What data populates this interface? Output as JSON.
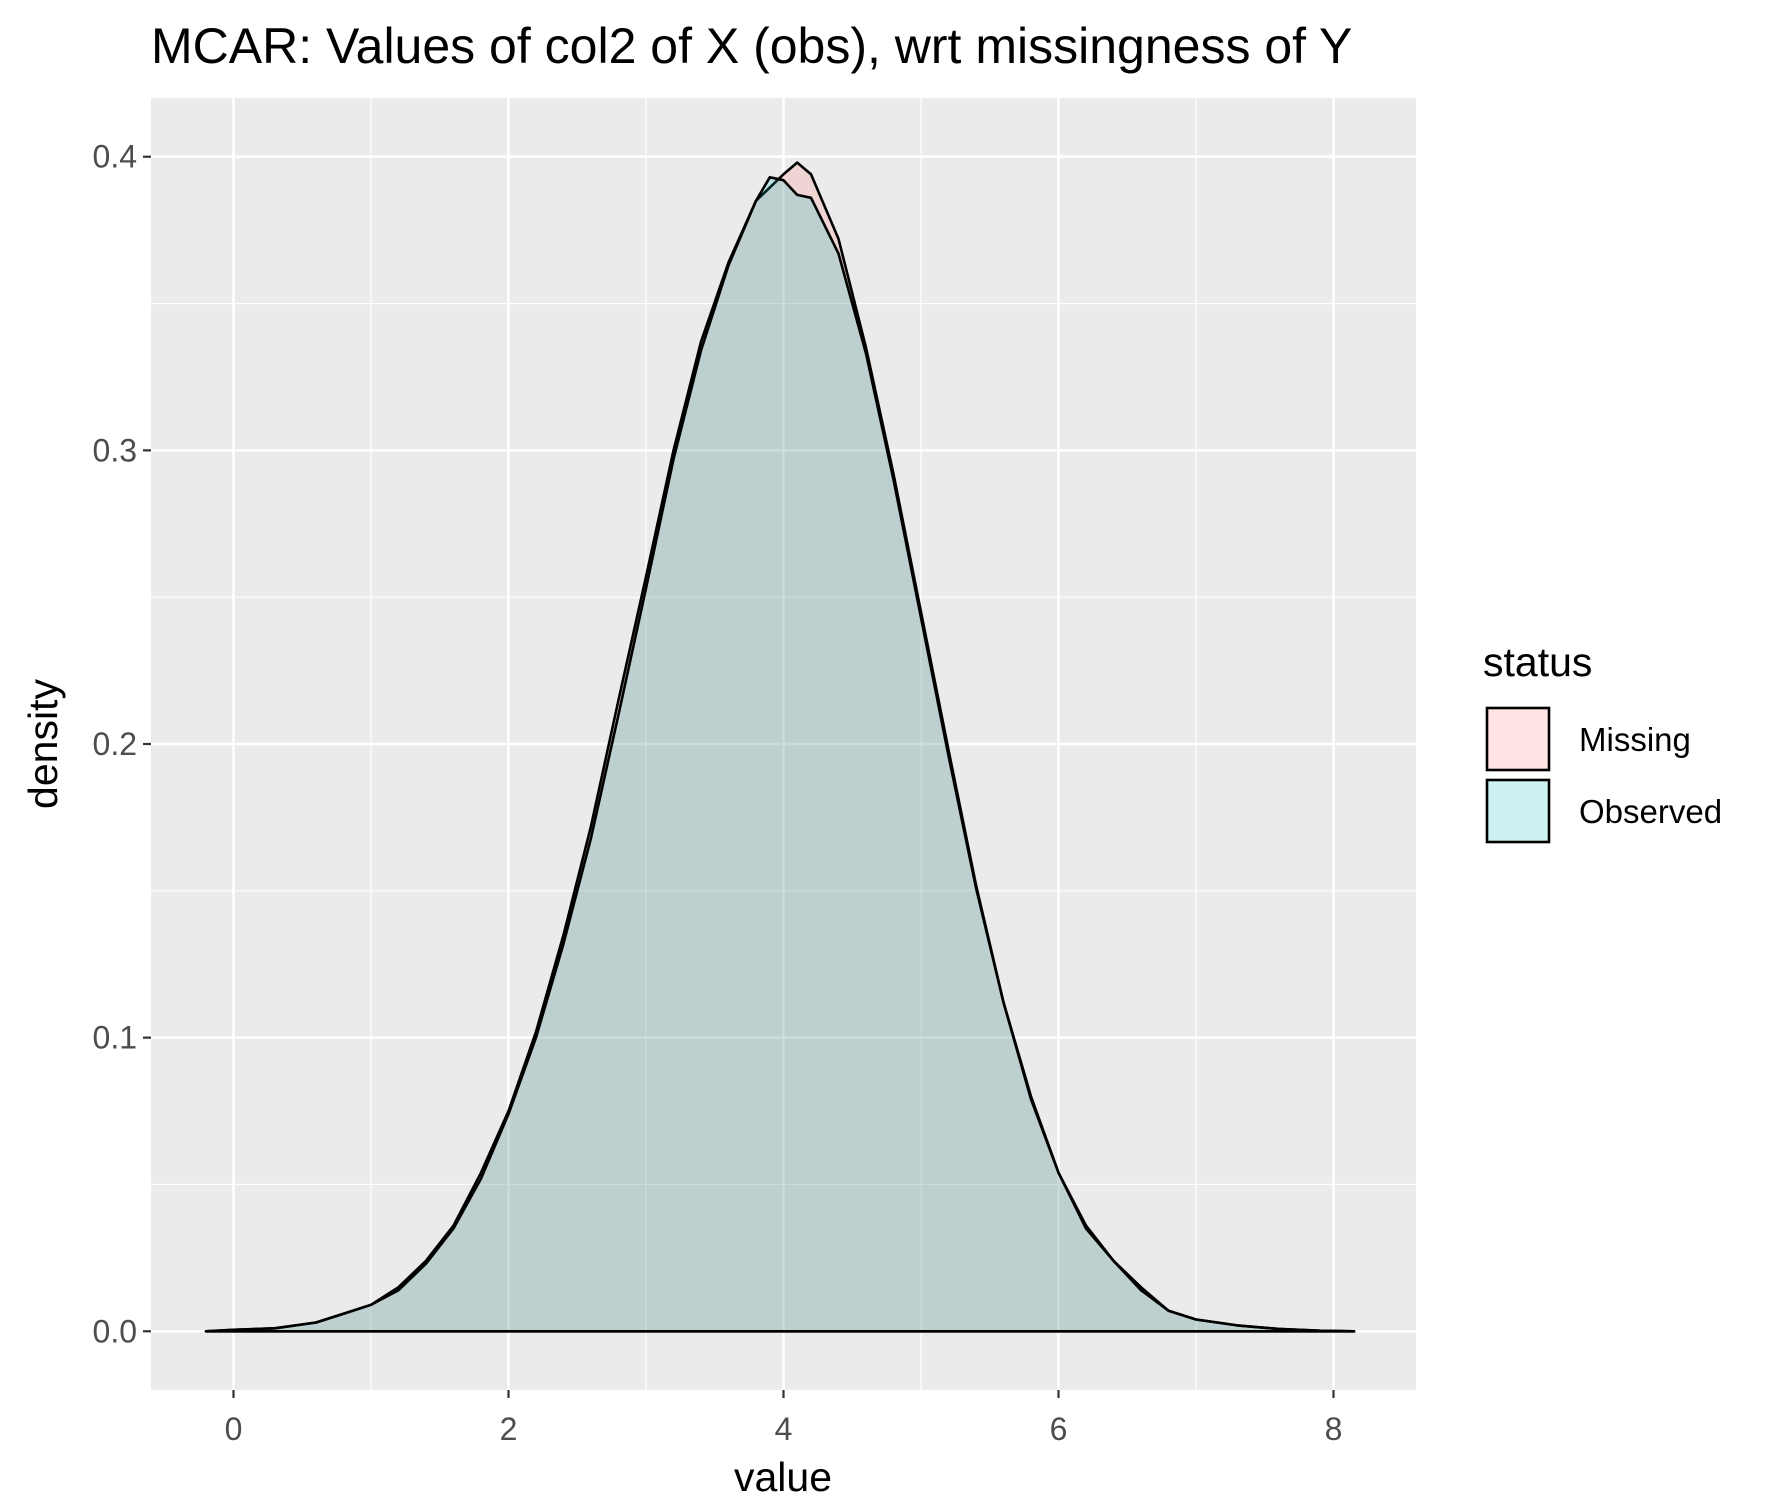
{
  "chart_data": {
    "type": "area",
    "title": "MCAR: Values of col2 of X (obs), wrt missingness of Y",
    "xlabel": "value",
    "ylabel": "density",
    "xlim": [
      -0.6,
      8.6
    ],
    "ylim": [
      -0.02,
      0.42
    ],
    "x_ticks": [
      "0",
      "2",
      "4",
      "6",
      "8"
    ],
    "y_ticks": [
      "0.0",
      "0.1",
      "0.2",
      "0.3",
      "0.4"
    ],
    "grid": true,
    "legend": {
      "title": "status",
      "position": "right",
      "entries": [
        "Missing",
        "Observed"
      ]
    },
    "series": [
      {
        "name": "Missing",
        "color": "#F8766D",
        "x": [
          -0.2,
          0.0,
          0.3,
          0.6,
          0.8,
          1.0,
          1.2,
          1.4,
          1.6,
          1.8,
          2.0,
          2.2,
          2.4,
          2.6,
          2.8,
          3.0,
          3.2,
          3.4,
          3.6,
          3.8,
          4.0,
          4.1,
          4.2,
          4.4,
          4.6,
          4.8,
          5.0,
          5.2,
          5.4,
          5.6,
          5.8,
          6.0,
          6.2,
          6.4,
          6.6,
          6.8,
          7.0,
          7.3,
          7.6,
          7.9,
          8.15
        ],
        "values": [
          0.0,
          0.0005,
          0.001,
          0.003,
          0.006,
          0.009,
          0.015,
          0.024,
          0.036,
          0.054,
          0.075,
          0.102,
          0.135,
          0.172,
          0.215,
          0.257,
          0.3,
          0.337,
          0.364,
          0.385,
          0.394,
          0.398,
          0.394,
          0.372,
          0.335,
          0.292,
          0.245,
          0.198,
          0.152,
          0.112,
          0.08,
          0.054,
          0.036,
          0.024,
          0.015,
          0.007,
          0.004,
          0.002,
          0.0008,
          0.0002,
          0.0
        ]
      },
      {
        "name": "Observed",
        "color": "#00BFC4",
        "x": [
          -0.2,
          0.0,
          0.3,
          0.6,
          0.8,
          1.0,
          1.2,
          1.4,
          1.6,
          1.8,
          2.0,
          2.2,
          2.4,
          2.6,
          2.8,
          3.0,
          3.2,
          3.4,
          3.6,
          3.8,
          3.9,
          4.0,
          4.1,
          4.2,
          4.4,
          4.6,
          4.8,
          5.0,
          5.2,
          5.4,
          5.6,
          5.8,
          6.0,
          6.2,
          6.4,
          6.6,
          6.8,
          7.0,
          7.3,
          7.6,
          7.9,
          8.15
        ],
        "values": [
          0.0,
          0.0005,
          0.001,
          0.003,
          0.006,
          0.009,
          0.014,
          0.023,
          0.035,
          0.052,
          0.074,
          0.1,
          0.132,
          0.168,
          0.21,
          0.253,
          0.297,
          0.334,
          0.363,
          0.385,
          0.393,
          0.392,
          0.387,
          0.386,
          0.367,
          0.333,
          0.29,
          0.243,
          0.196,
          0.151,
          0.112,
          0.079,
          0.054,
          0.035,
          0.024,
          0.014,
          0.007,
          0.004,
          0.002,
          0.0008,
          0.0002,
          0.0
        ]
      }
    ]
  }
}
